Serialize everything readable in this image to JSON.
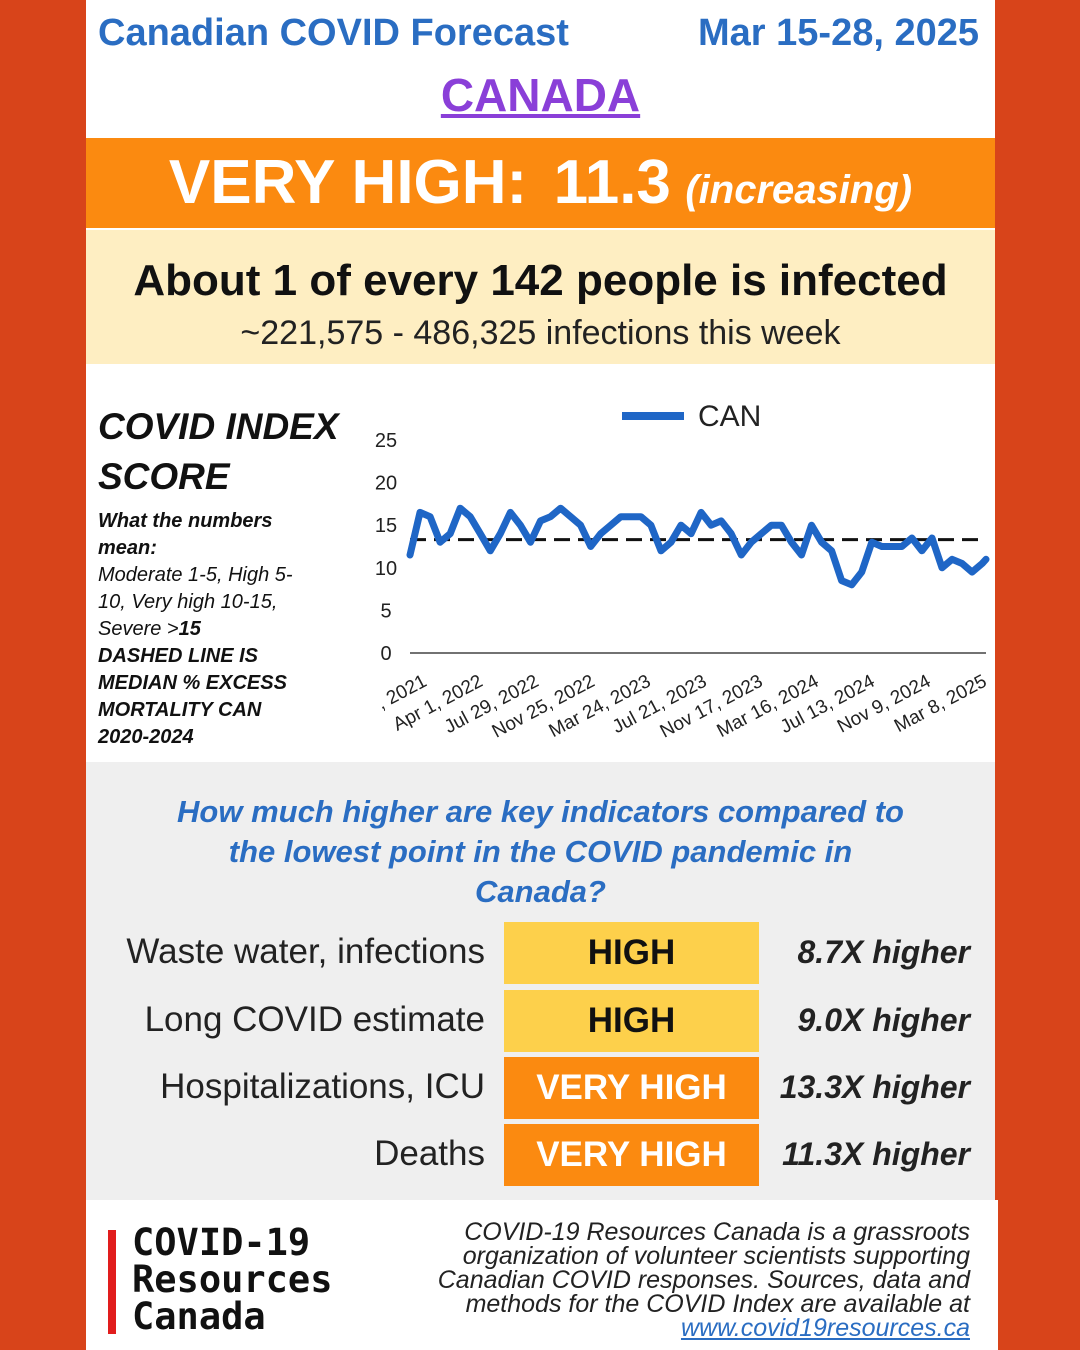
{
  "header": {
    "title": "Canadian COVID Forecast",
    "date_range": "Mar 15-28, 2025",
    "region": "CANADA"
  },
  "level_banner": {
    "level": "VERY HIGH:",
    "score": "11.3",
    "trend": "(increasing)"
  },
  "infections": {
    "headline": "About 1 of every 142 people is infected",
    "range": "~221,575 - 486,325 infections this week"
  },
  "index_panel": {
    "title_line1": "COVID INDEX",
    "title_line2": "SCORE",
    "desc_intro": "What the numbers mean:",
    "desc_scale_a": "Moderate 1-5, High 5-10, Very high 10-15, Severe >",
    "desc_scale_b": "15",
    "desc_dashed": "DASHED LINE IS MEDIAN % EXCESS MORTALITY CAN 2020-2024"
  },
  "chart_data": {
    "type": "line",
    "legend": "CAN",
    "y_ticks": [
      "0",
      "5",
      "10",
      "15",
      "20",
      "25"
    ],
    "ylim": [
      0,
      25
    ],
    "x_tick_labels": [
      ", 2021",
      "Apr 1, 2022",
      "Jul 29, 2022",
      "Nov 25, 2022",
      "Mar 24, 2023",
      "Jul 21, 2023",
      "Nov 17, 2023",
      "Mar 16, 2024",
      "Jul 13, 2024",
      "Nov 9, 2024",
      "Mar 8, 2025"
    ],
    "x_start": "2021-12-03",
    "x_end": "2025-03-22",
    "median_line": 13.3,
    "series": [
      {
        "name": "CAN",
        "color": "#1f66c6",
        "points": [
          [
            "2021-12-03",
            11.5
          ],
          [
            "2021-12-24",
            16.5
          ],
          [
            "2022-01-14",
            16.0
          ],
          [
            "2022-02-04",
            13.0
          ],
          [
            "2022-02-25",
            14.0
          ],
          [
            "2022-03-18",
            17.0
          ],
          [
            "2022-04-08",
            16.0
          ],
          [
            "2022-04-29",
            14.0
          ],
          [
            "2022-05-20",
            12.0
          ],
          [
            "2022-06-10",
            14.0
          ],
          [
            "2022-07-01",
            16.5
          ],
          [
            "2022-07-22",
            15.0
          ],
          [
            "2022-08-12",
            13.0
          ],
          [
            "2022-09-02",
            15.5
          ],
          [
            "2022-09-23",
            16.0
          ],
          [
            "2022-10-14",
            17.0
          ],
          [
            "2022-11-04",
            16.0
          ],
          [
            "2022-11-25",
            15.0
          ],
          [
            "2022-12-16",
            12.5
          ],
          [
            "2023-01-06",
            14.0
          ],
          [
            "2023-01-27",
            15.0
          ],
          [
            "2023-02-17",
            16.0
          ],
          [
            "2023-03-10",
            16.0
          ],
          [
            "2023-03-31",
            16.0
          ],
          [
            "2023-04-21",
            15.0
          ],
          [
            "2023-05-12",
            12.0
          ],
          [
            "2023-06-02",
            13.0
          ],
          [
            "2023-06-23",
            15.0
          ],
          [
            "2023-07-14",
            14.0
          ],
          [
            "2023-08-04",
            16.5
          ],
          [
            "2023-08-25",
            15.0
          ],
          [
            "2023-09-15",
            15.5
          ],
          [
            "2023-10-06",
            14.0
          ],
          [
            "2023-10-27",
            11.5
          ],
          [
            "2023-11-17",
            13.0
          ],
          [
            "2023-12-08",
            14.0
          ],
          [
            "2023-12-29",
            15.0
          ],
          [
            "2024-01-19",
            15.0
          ],
          [
            "2024-02-09",
            13.0
          ],
          [
            "2024-03-01",
            11.5
          ],
          [
            "2024-03-22",
            15.0
          ],
          [
            "2024-04-12",
            13.0
          ],
          [
            "2024-05-03",
            12.0
          ],
          [
            "2024-05-24",
            8.5
          ],
          [
            "2024-06-14",
            8.0
          ],
          [
            "2024-07-05",
            9.5
          ],
          [
            "2024-07-26",
            13.0
          ],
          [
            "2024-08-16",
            12.5
          ],
          [
            "2024-09-06",
            12.5
          ],
          [
            "2024-09-27",
            12.5
          ],
          [
            "2024-10-18",
            13.5
          ],
          [
            "2024-11-08",
            12.0
          ],
          [
            "2024-11-29",
            13.5
          ],
          [
            "2024-12-20",
            10.0
          ],
          [
            "2025-01-10",
            11.0
          ],
          [
            "2025-01-31",
            10.5
          ],
          [
            "2025-02-21",
            9.5
          ],
          [
            "2025-03-14",
            10.5
          ],
          [
            "2025-03-22",
            11.0
          ]
        ]
      }
    ]
  },
  "comparison": {
    "question": "How much higher are key indicators compared to the lowest point in the COVID pandemic in Canada?",
    "rows": [
      {
        "label": "Waste water, infections",
        "level": "HIGH",
        "multiplier": "8.7X higher",
        "color": "#fdd04b",
        "text_color": "#111111"
      },
      {
        "label": "Long COVID estimate",
        "level": "HIGH",
        "multiplier": "9.0X higher",
        "color": "#fdd04b",
        "text_color": "#111111"
      },
      {
        "label": "Hospitalizations, ICU",
        "level": "VERY HIGH",
        "multiplier": "13.3X higher",
        "color": "#fb8a10",
        "text_color": "#ffffff"
      },
      {
        "label": "Deaths",
        "level": "VERY HIGH",
        "multiplier": "11.3X higher",
        "color": "#fb8a10",
        "text_color": "#ffffff"
      }
    ]
  },
  "footer": {
    "logo_line1": "COVID-19",
    "logo_line2": "Resources",
    "logo_line3": "Canada",
    "about": "COVID-19 Resources Canada is a grassroots organization of volunteer scientists supporting Canadian COVID responses. Sources, data and methods for the COVID Index are available at",
    "link": "www.covid19resources.ca"
  }
}
